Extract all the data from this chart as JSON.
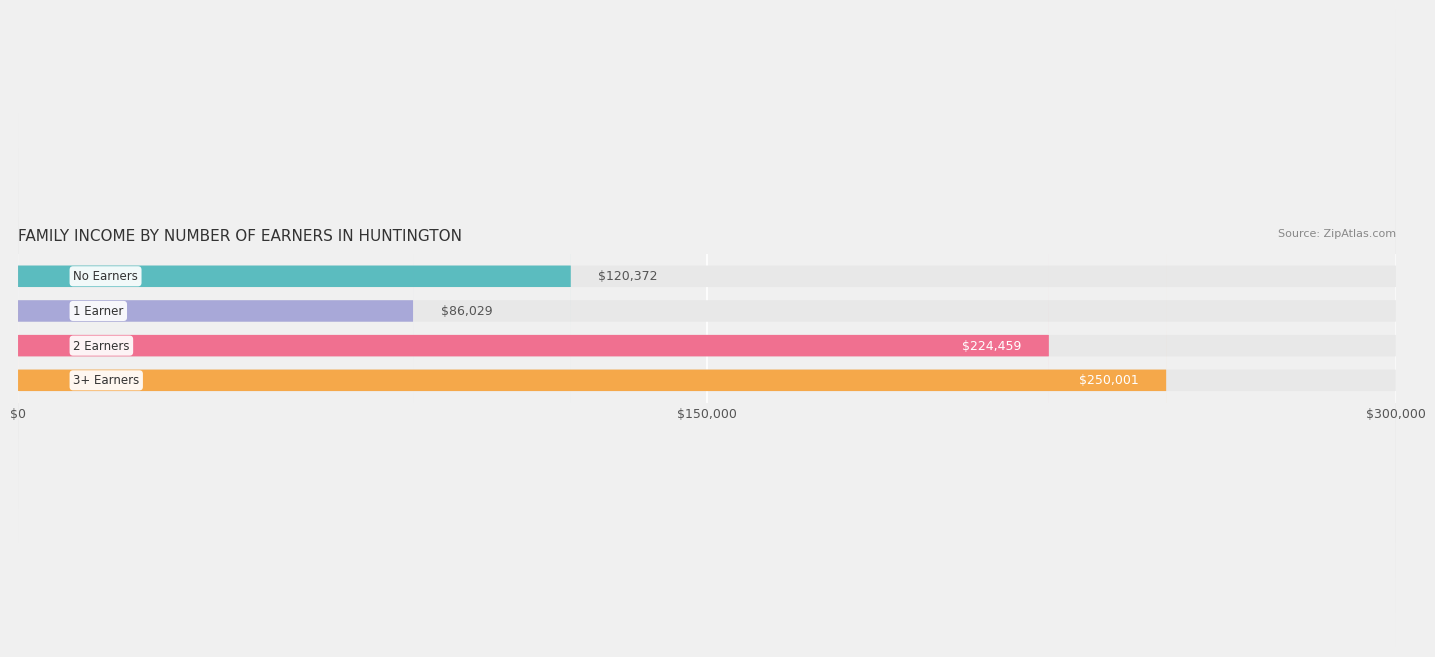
{
  "title": "FAMILY INCOME BY NUMBER OF EARNERS IN HUNTINGTON",
  "source": "Source: ZipAtlas.com",
  "categories": [
    "No Earners",
    "1 Earner",
    "2 Earners",
    "3+ Earners"
  ],
  "values": [
    120372,
    86029,
    224459,
    250001
  ],
  "bar_colors": [
    "#5bbcbf",
    "#a8a8d8",
    "#f07090",
    "#f5a84a"
  ],
  "bar_labels": [
    "$120,372",
    "$86,029",
    "$224,459",
    "$250,001"
  ],
  "label_colors": [
    "#555555",
    "#555555",
    "#ffffff",
    "#ffffff"
  ],
  "xlim": [
    0,
    300000
  ],
  "xticks": [
    0,
    150000,
    300000
  ],
  "xtick_labels": [
    "$0",
    "$150,000",
    "$300,000"
  ],
  "background_color": "#f0f0f0",
  "bar_bg_color": "#e8e8e8",
  "title_fontsize": 11,
  "source_fontsize": 8,
  "tick_fontsize": 9,
  "bar_label_fontsize": 9,
  "category_fontsize": 8.5
}
